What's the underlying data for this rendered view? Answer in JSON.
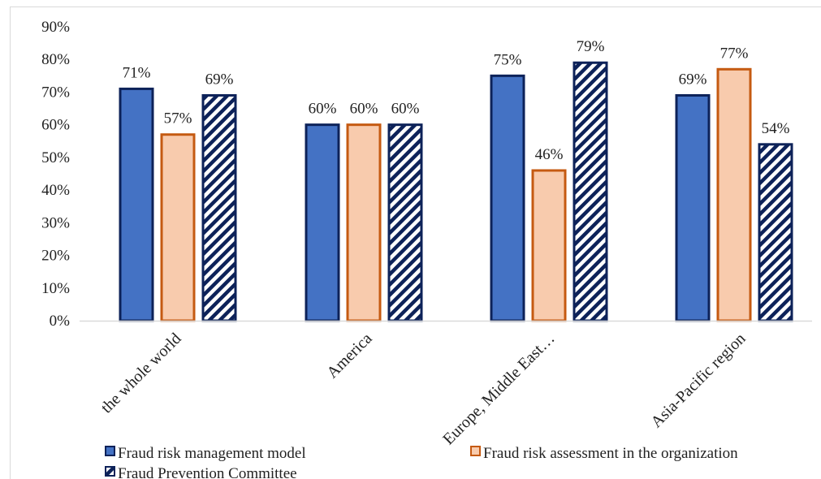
{
  "chart_data": {
    "type": "bar",
    "title": "",
    "xlabel": "",
    "ylabel": "",
    "categories": [
      "the whole world",
      "America",
      "Europe, Middle East…",
      "Asia-Pacific region"
    ],
    "series": [
      {
        "name": "Fraud risk management model",
        "values": [
          71,
          60,
          75,
          69
        ],
        "labels": [
          "71%",
          "60%",
          "75%",
          "69%"
        ],
        "fill": "#4472C4",
        "stroke": "#0D2259",
        "pattern": "solid"
      },
      {
        "name": "Fraud risk assessment in the organization",
        "values": [
          57,
          60,
          46,
          77
        ],
        "labels": [
          "57%",
          "60%",
          "46%",
          "77%"
        ],
        "fill": "#F8CBAD",
        "stroke": "#C55A11",
        "pattern": "solid"
      },
      {
        "name": "Fraud Prevention Committee",
        "values": [
          69,
          60,
          79,
          54
        ],
        "labels": [
          "69%",
          "60%",
          "79%",
          "54%"
        ],
        "fill": "#ffffff",
        "stroke": "#0D2259",
        "pattern": "diagonal-stripes"
      }
    ],
    "ylim": [
      0,
      90
    ],
    "yticks": [
      0,
      10,
      20,
      30,
      40,
      50,
      60,
      70,
      80,
      90
    ],
    "ytick_labels": [
      "0%",
      "10%",
      "20%",
      "30%",
      "40%",
      "50%",
      "60%",
      "70%",
      "80%",
      "90%"
    ],
    "grid": false,
    "legend_position": "bottom"
  }
}
